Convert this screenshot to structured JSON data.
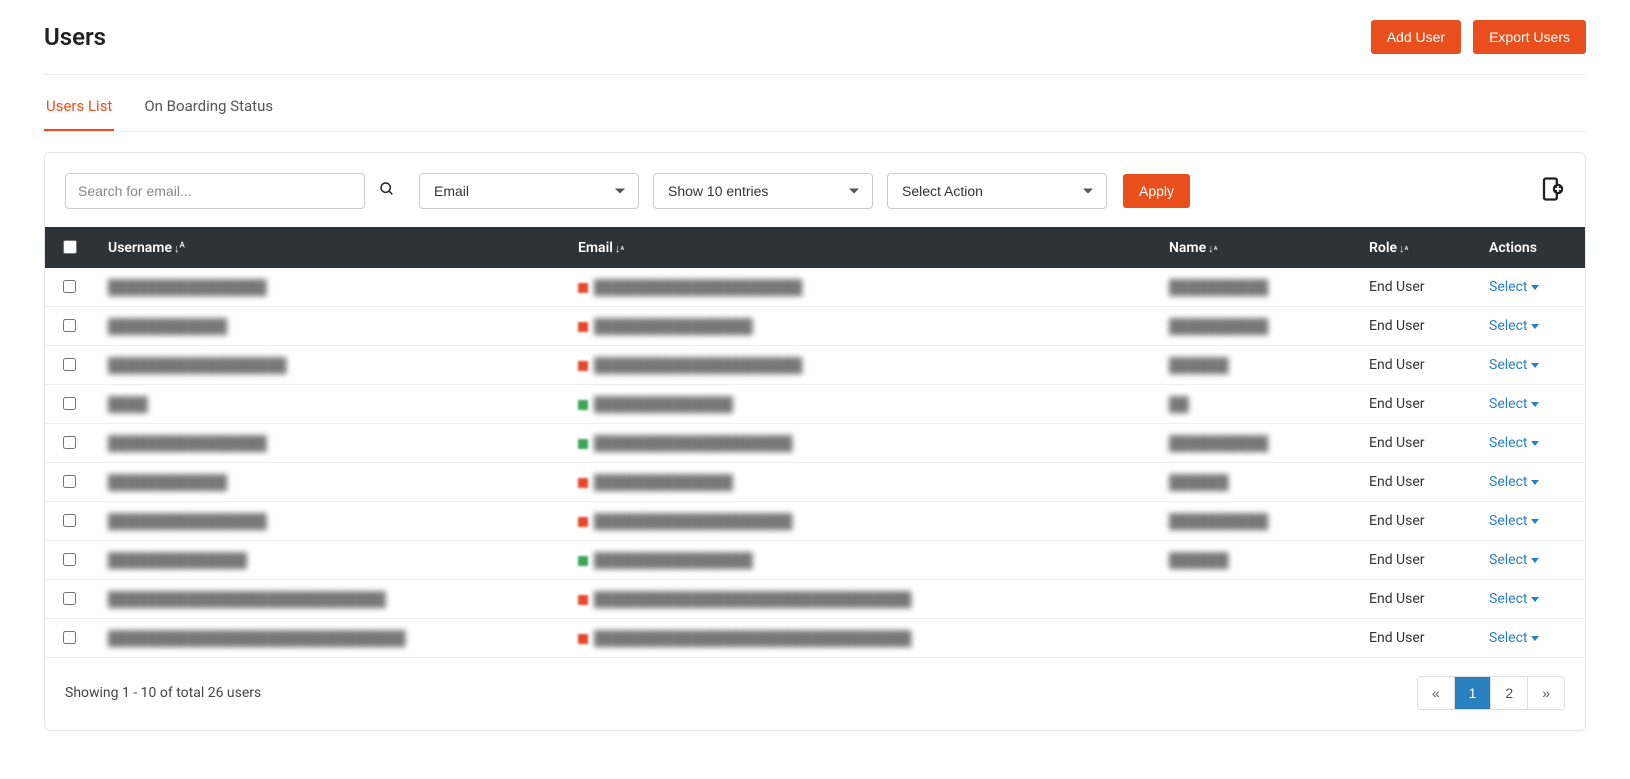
{
  "header": {
    "title": "Users",
    "add_user_label": "Add User",
    "export_users_label": "Export Users"
  },
  "tabs": {
    "users_list": "Users List",
    "onboarding_status": "On Boarding Status",
    "active": "users_list"
  },
  "controls": {
    "search_placeholder": "Search for email...",
    "filter_by_label": "Email",
    "entries_label": "Show 10 entries",
    "action_label": "Select Action",
    "apply_label": "Apply"
  },
  "table": {
    "columns": {
      "username": "Username",
      "email": "Email",
      "name": "Name",
      "role": "Role",
      "actions": "Actions"
    },
    "row_action_label": "Select",
    "status_colors": {
      "red": "#e6482c",
      "green": "#3aa657"
    },
    "rows": [
      {
        "username": "████████████████",
        "email_status": "red",
        "email": "█████████████████████",
        "name": "██████████",
        "role": "End User"
      },
      {
        "username": "████████████",
        "email_status": "red",
        "email": "████████████████",
        "name": "██████████",
        "role": "End User"
      },
      {
        "username": "██████████████████",
        "email_status": "red",
        "email": "█████████████████████",
        "name": "██████",
        "role": "End User"
      },
      {
        "username": "████",
        "email_status": "green",
        "email": "██████████████",
        "name": "██",
        "role": "End User"
      },
      {
        "username": "████████████████",
        "email_status": "green",
        "email": "████████████████████",
        "name": "██████████",
        "role": "End User"
      },
      {
        "username": "████████████",
        "email_status": "red",
        "email": "██████████████",
        "name": "██████",
        "role": "End User"
      },
      {
        "username": "████████████████",
        "email_status": "red",
        "email": "████████████████████",
        "name": "██████████",
        "role": "End User"
      },
      {
        "username": "██████████████",
        "email_status": "green",
        "email": "████████████████",
        "name": "██████",
        "role": "End User"
      },
      {
        "username": "████████████████████████████",
        "email_status": "red",
        "email": "████████████████████████████████",
        "name": "",
        "role": "End User"
      },
      {
        "username": "██████████████████████████████",
        "email_status": "red",
        "email": "████████████████████████████████",
        "name": "",
        "role": "End User"
      }
    ]
  },
  "footer": {
    "summary": "Showing 1 - 10 of total 26 users",
    "pages": [
      "«",
      "1",
      "2",
      "»"
    ],
    "active_page": "1"
  },
  "colors": {
    "accent": "#e84f1d",
    "link": "#2a7fbf",
    "header_bg": "#2e3338"
  }
}
